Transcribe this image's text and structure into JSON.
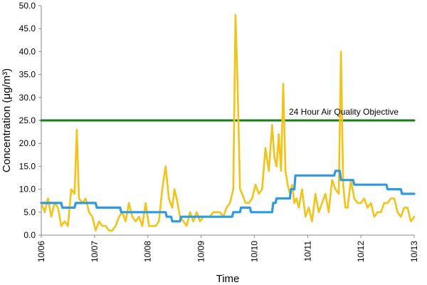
{
  "chart_data": {
    "type": "line",
    "title": "",
    "xlabel": "Time",
    "ylabel": "Concentration (μg/m³)",
    "ylim": [
      0,
      50
    ],
    "xlim": [
      "10/06",
      "10/13"
    ],
    "y_ticks": [
      "0.0",
      "5.0",
      "10.0",
      "15.0",
      "20.0",
      "25.0",
      "30.0",
      "35.0",
      "40.0",
      "45.0",
      "50.0"
    ],
    "x_ticks": [
      "10/06",
      "10/07",
      "10/08",
      "10/09",
      "10/10",
      "10/11",
      "10/12",
      "10/13"
    ],
    "grid": false,
    "annotations": [
      {
        "text": "24 Hour Air Quality Objective"
      }
    ],
    "series": [
      {
        "key": "hourly",
        "color": "#F2C318",
        "x": [
          "10/06 00:00",
          "10/06 01:30",
          "10/06 03:00",
          "10/06 04:30",
          "10/06 06:00",
          "10/06 07:30",
          "10/06 09:00",
          "10/06 10:30",
          "10/06 12:00",
          "10/06 13:30",
          "10/06 15:00",
          "10/06 16:00",
          "10/06 17:00",
          "10/06 18:30",
          "10/06 20:00",
          "10/06 21:30",
          "10/06 23:00",
          "10/07 00:30",
          "10/07 02:00",
          "10/07 03:30",
          "10/07 05:00",
          "10/07 06:30",
          "10/07 08:00",
          "10/07 09:30",
          "10/07 11:00",
          "10/07 12:30",
          "10/07 14:00",
          "10/07 15:30",
          "10/07 17:00",
          "10/07 18:30",
          "10/07 20:00",
          "10/07 21:30",
          "10/07 23:00",
          "10/08 00:30",
          "10/08 02:00",
          "10/08 03:30",
          "10/08 05:00",
          "10/08 06:30",
          "10/08 08:00",
          "10/08 09:30",
          "10/08 11:00",
          "10/08 12:00",
          "10/08 13:00",
          "10/08 14:30",
          "10/08 16:00",
          "10/08 17:30",
          "10/08 19:00",
          "10/08 20:30",
          "10/08 22:00",
          "10/08 23:30",
          "10/09 01:00",
          "10/09 02:30",
          "10/09 04:00",
          "10/09 05:30",
          "10/09 07:00",
          "10/09 08:30",
          "10/09 10:00",
          "10/09 11:30",
          "10/09 13:00",
          "10/09 14:30",
          "10/09 15:30",
          "10/09 16:30",
          "10/09 17:30",
          "10/09 18:30",
          "10/09 20:00",
          "10/09 21:30",
          "10/09 23:00",
          "10/10 00:30",
          "10/10 02:00",
          "10/10 03:30",
          "10/10 05:00",
          "10/10 06:30",
          "10/10 08:00",
          "10/10 09:00",
          "10/10 10:00",
          "10/10 11:00",
          "10/10 12:00",
          "10/10 13:00",
          "10/10 14:00",
          "10/10 15:00",
          "10/10 16:00",
          "10/10 17:00",
          "10/10 18:00",
          "10/10 19:00",
          "10/10 20:00",
          "10/10 21:30",
          "10/10 23:00",
          "10/11 00:30",
          "10/11 02:00",
          "10/11 03:30",
          "10/11 05:00",
          "10/11 06:30",
          "10/11 08:00",
          "10/11 09:30",
          "10/11 11:00",
          "10/11 12:30",
          "10/11 14:00",
          "10/11 15:00",
          "10/11 16:00",
          "10/11 17:00",
          "10/11 18:00",
          "10/11 19:30",
          "10/11 21:00",
          "10/11 22:30",
          "10/12 00:00",
          "10/12 01:30",
          "10/12 03:00",
          "10/12 04:30",
          "10/12 06:00",
          "10/12 07:30",
          "10/12 09:00",
          "10/12 10:30",
          "10/12 12:00",
          "10/12 13:30",
          "10/12 15:00",
          "10/12 16:30",
          "10/12 18:00",
          "10/12 19:30",
          "10/12 21:00",
          "10/12 22:30",
          "10/13 00:00"
        ],
        "values": [
          7,
          5,
          8,
          4,
          7,
          6,
          2,
          3,
          2,
          10,
          9,
          23,
          8,
          7,
          8,
          5,
          4,
          1,
          3,
          2,
          2,
          1,
          1,
          2,
          4,
          5,
          3,
          7,
          4,
          3,
          4,
          2,
          7,
          2,
          2,
          2,
          3,
          10,
          15,
          8,
          6,
          10,
          8,
          4,
          3,
          2,
          5,
          3,
          5,
          3,
          4,
          4,
          4,
          5,
          5,
          5,
          4,
          6,
          7,
          10,
          48,
          32,
          10,
          9,
          7,
          7,
          8,
          11,
          9,
          10,
          19,
          14,
          24,
          17,
          15,
          22,
          14,
          33,
          14,
          11,
          9,
          11,
          7,
          8,
          6,
          10,
          4,
          6,
          3,
          9,
          5,
          7,
          9,
          5,
          12,
          10,
          9,
          40,
          11,
          6,
          6,
          12,
          8,
          7,
          7,
          8,
          6,
          7,
          4,
          5,
          5,
          7,
          7,
          8,
          8,
          5,
          4,
          6,
          6,
          3,
          4
        ]
      },
      {
        "key": "running_avg",
        "color": "#2E9BE0",
        "x": [
          "10/06 00:00",
          "10/06 09:00",
          "10/06 09:30",
          "10/06 15:00",
          "10/06 15:30",
          "10/07 00:30",
          "10/07 01:00",
          "10/07 11:30",
          "10/07 12:00",
          "10/08 08:00",
          "10/08 08:30",
          "10/08 10:30",
          "10/08 11:00",
          "10/08 14:30",
          "10/08 15:00",
          "10/09 14:00",
          "10/09 14:30",
          "10/09 17:30",
          "10/09 18:00",
          "10/09 22:00",
          "10/09 22:30",
          "10/10 08:00",
          "10/10 08:30",
          "10/10 09:30",
          "10/10 10:00",
          "10/10 16:00",
          "10/10 16:30",
          "10/10 18:00",
          "10/10 18:30",
          "10/11 12:00",
          "10/11 12:30",
          "10/11 14:30",
          "10/11 15:00",
          "10/11 20:30",
          "10/11 21:00",
          "10/12 11:30",
          "10/12 12:00",
          "10/12 18:00",
          "10/12 18:30",
          "10/13 00:00"
        ],
        "values": [
          7,
          7,
          6,
          6,
          7,
          7,
          6,
          6,
          5,
          5,
          4,
          4,
          3,
          3,
          4,
          4,
          5,
          5,
          6,
          6,
          5,
          5,
          7,
          7,
          8,
          8,
          10,
          10,
          13,
          13,
          14,
          14,
          12,
          12,
          11,
          11,
          10,
          10,
          9,
          9
        ]
      },
      {
        "key": "objective",
        "color": "#1E7A1E",
        "x": [
          "10/06 00:00",
          "10/13 00:00"
        ],
        "values": [
          25,
          25
        ]
      }
    ]
  }
}
